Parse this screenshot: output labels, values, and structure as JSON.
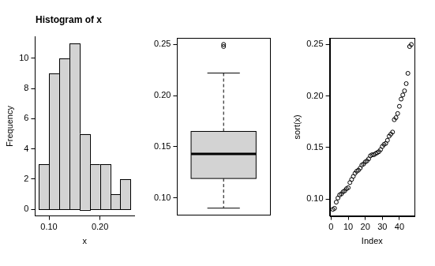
{
  "chart_data": [
    {
      "type": "histogram",
      "title": "Histogram of x",
      "x_label": "x",
      "y_label": "Frequency",
      "bins": [
        0.08,
        0.1,
        0.12,
        0.14,
        0.16,
        0.18,
        0.2,
        0.22,
        0.24,
        0.26
      ],
      "counts": [
        3,
        9,
        10,
        11,
        5,
        3,
        3,
        1,
        2
      ],
      "color": "#d3d3d3",
      "xlim": [
        0.0728,
        0.2672
      ],
      "xticks": [
        {
          "value": 0.1,
          "label": "0.10"
        },
        {
          "value": 0.2,
          "label": "0.20"
        }
      ],
      "ylim": [
        -0.44,
        11.44
      ],
      "yticks": [
        0,
        2,
        4,
        6,
        8,
        10
      ],
      "grid": false
    },
    {
      "type": "boxplot",
      "min": 0.09,
      "q1": 0.119,
      "median": 0.143,
      "q3": 0.165,
      "max": 0.222,
      "outliers": [
        0.248,
        0.25
      ],
      "color": "#d3d3d3",
      "ylim": [
        0.0836,
        0.2564
      ],
      "yticks": [
        {
          "value": 0.1,
          "label": "0.10"
        },
        {
          "value": 0.15,
          "label": "0.15"
        },
        {
          "value": 0.2,
          "label": "0.20"
        },
        {
          "value": 0.25,
          "label": "0.25"
        }
      ],
      "tick_labels": "y",
      "grid": false
    },
    {
      "type": "scatter",
      "x_label": "Index",
      "y_label": "sort(x)",
      "x": [
        1,
        2,
        3,
        4,
        5,
        6,
        7,
        8,
        9,
        10,
        11,
        12,
        13,
        14,
        15,
        16,
        17,
        18,
        19,
        20,
        21,
        22,
        23,
        24,
        25,
        26,
        27,
        28,
        29,
        30,
        31,
        32,
        33,
        34,
        35,
        36,
        37,
        38,
        39,
        40,
        41,
        42,
        43,
        44,
        45,
        46,
        47
      ],
      "values": [
        0.09,
        0.091,
        0.097,
        0.101,
        0.104,
        0.105,
        0.107,
        0.108,
        0.11,
        0.111,
        0.116,
        0.119,
        0.122,
        0.125,
        0.127,
        0.128,
        0.13,
        0.133,
        0.134,
        0.136,
        0.137,
        0.139,
        0.142,
        0.143,
        0.143,
        0.144,
        0.145,
        0.146,
        0.148,
        0.151,
        0.153,
        0.154,
        0.157,
        0.161,
        0.163,
        0.165,
        0.177,
        0.179,
        0.183,
        0.19,
        0.197,
        0.201,
        0.205,
        0.212,
        0.222,
        0.248,
        0.25
      ],
      "marker": "open_circle",
      "xlim": [
        -0.84,
        48.84
      ],
      "xticks": [
        0,
        10,
        20,
        30,
        40
      ],
      "ylim": [
        0.0836,
        0.2564
      ],
      "yticks": [
        {
          "value": 0.1,
          "label": "0.10"
        },
        {
          "value": 0.15,
          "label": "0.15"
        },
        {
          "value": 0.2,
          "label": "0.20"
        },
        {
          "value": 0.25,
          "label": "0.25"
        }
      ],
      "grid": false
    }
  ]
}
